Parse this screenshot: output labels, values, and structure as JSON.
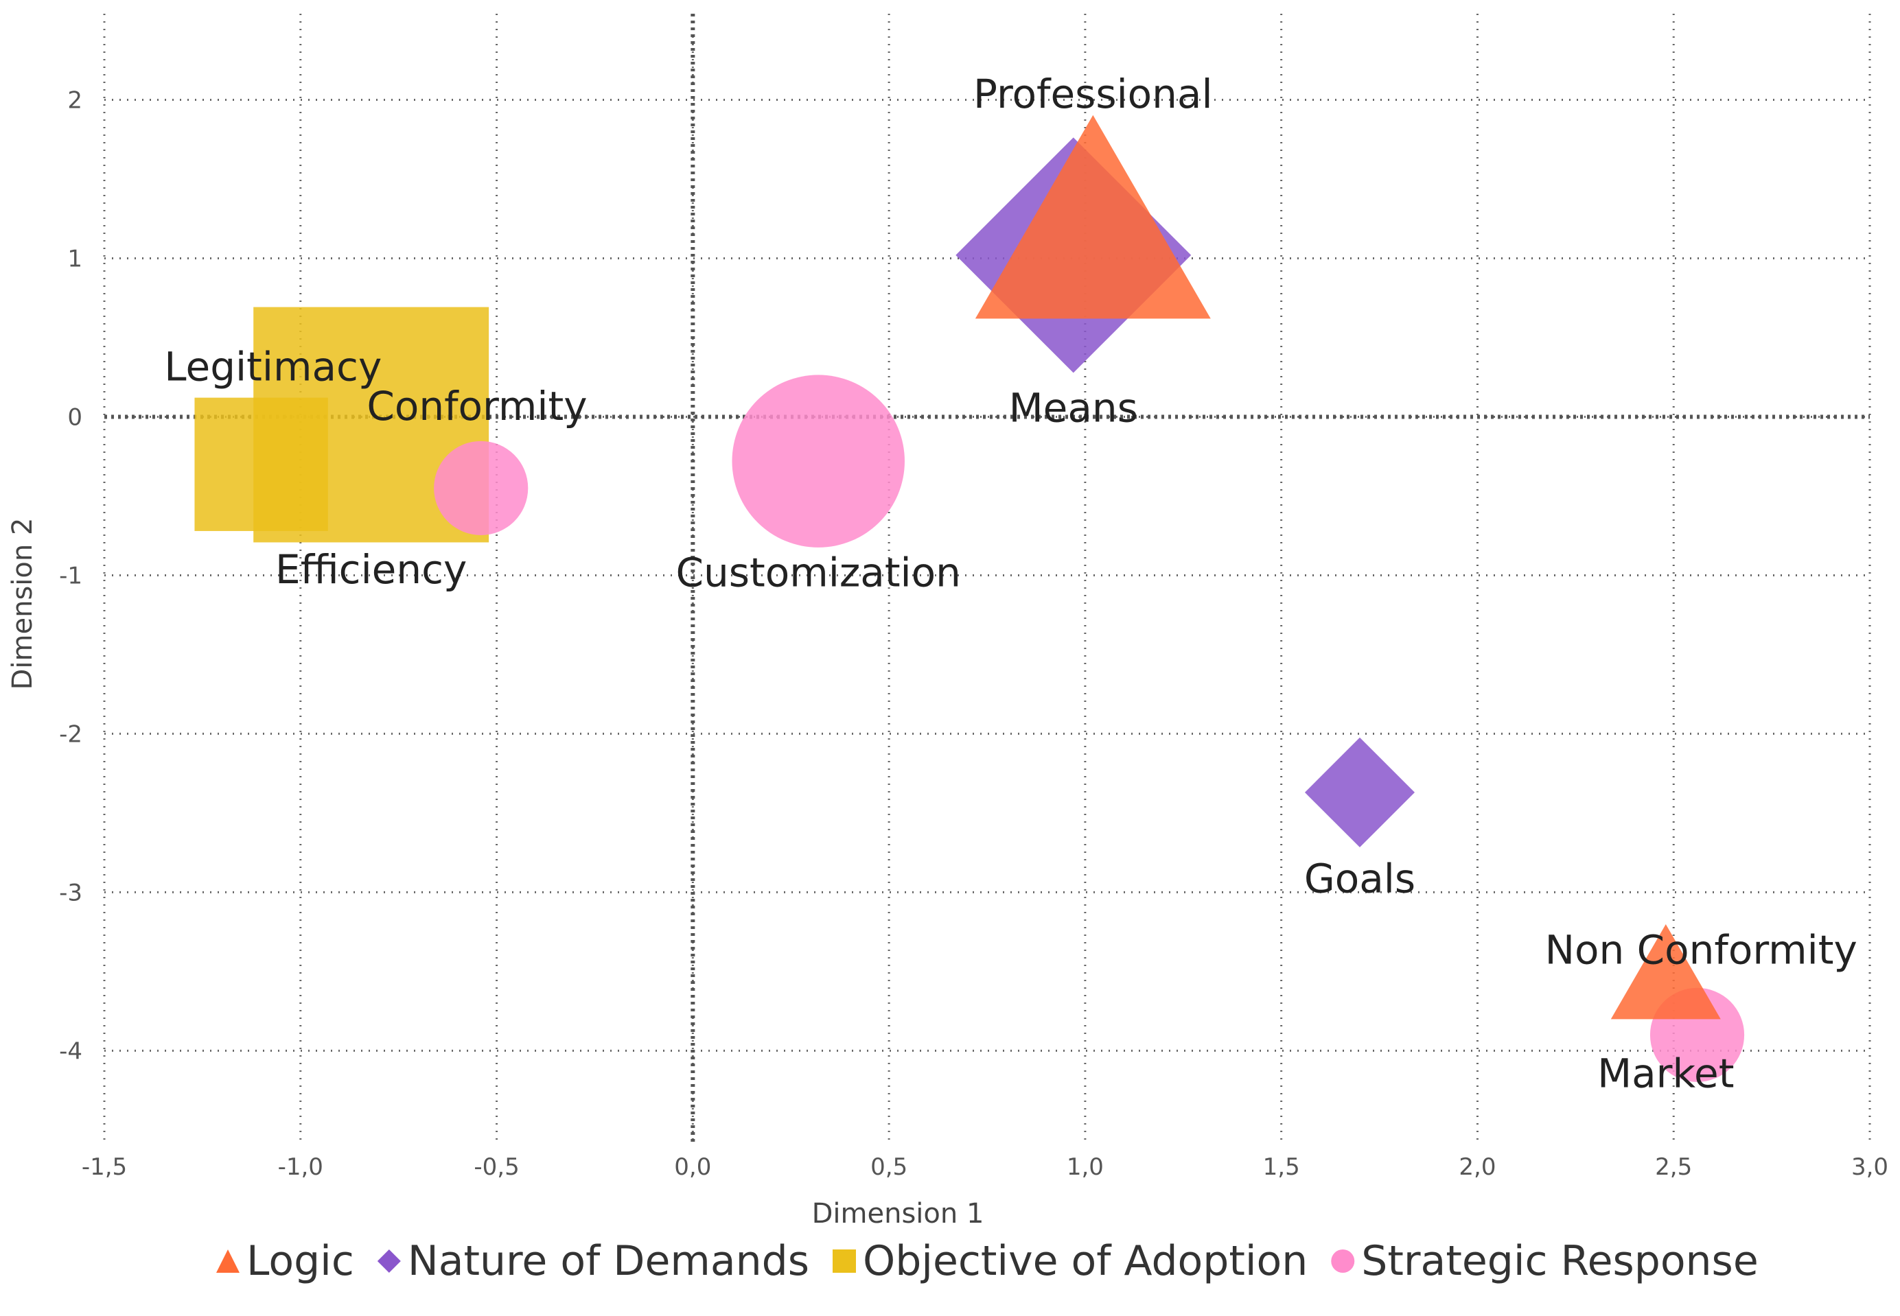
{
  "chart_data": {
    "type": "scatter",
    "xlabel": "Dimension 1",
    "ylabel": "Dimension 2",
    "xlim": [
      -1.5,
      3.0
    ],
    "ylim": [
      -4.6,
      2.5
    ],
    "xticks": [
      -1.5,
      -1.0,
      -0.5,
      0.0,
      0.5,
      1.0,
      1.5,
      2.0,
      2.5,
      3.0
    ],
    "xtick_labels": [
      "-1,5",
      "-1,0",
      "-0,5",
      "0,0",
      "0,5",
      "1,0",
      "1,5",
      "2,0",
      "2,5",
      "3,0"
    ],
    "yticks": [
      2,
      1,
      0,
      -1,
      -2,
      -3,
      -4
    ],
    "ytick_labels": [
      "2",
      "1",
      "0",
      "-1",
      "-2",
      "-3",
      "-4"
    ],
    "grid": "dotted",
    "legend_placement": "bottom",
    "series": [
      {
        "name": "Logic",
        "marker": "triangle",
        "color": "#ff6b35",
        "points": [
          {
            "label": "Professional",
            "x": 1.02,
            "y": 1.05,
            "size": 0.3
          },
          {
            "label": "Non Conformity",
            "x": 2.48,
            "y": -3.6,
            "size": 0.14
          }
        ]
      },
      {
        "name": "Nature of Demands",
        "marker": "diamond",
        "color": "#8a56cc",
        "points": [
          {
            "label": "Means",
            "x": 0.97,
            "y": 1.02,
            "size": 0.3
          },
          {
            "label": "Goals",
            "x": 1.7,
            "y": -2.37,
            "size": 0.14
          }
        ]
      },
      {
        "name": "Objective of Adoption",
        "marker": "square",
        "color": "#ebc01b",
        "points": [
          {
            "label": "Efficiency",
            "x": -0.82,
            "y": -0.05,
            "size": 0.3
          },
          {
            "label": "Legitimacy",
            "x": -1.1,
            "y": -0.3,
            "size": 0.17
          }
        ]
      },
      {
        "name": "Strategic Response",
        "marker": "circle",
        "color": "#ff8ccc",
        "points": [
          {
            "label": "Conformity",
            "x": -0.54,
            "y": -0.45,
            "size": 0.12
          },
          {
            "label": "Customization",
            "x": 0.32,
            "y": -0.28,
            "size": 0.22
          },
          {
            "label": "Market",
            "x": 2.56,
            "y": -3.9,
            "size": 0.12
          }
        ]
      }
    ],
    "annotations": [
      {
        "text": "Professional",
        "x": 1.02,
        "y": 1.95
      },
      {
        "text": "Means",
        "x": 0.97,
        "y": -0.03
      },
      {
        "text": "Legitimacy",
        "x": -1.07,
        "y": 0.23
      },
      {
        "text": "Conformity",
        "x": -0.55,
        "y": -0.02
      },
      {
        "text": "Efficiency",
        "x": -0.82,
        "y": -1.05
      },
      {
        "text": "Customization",
        "x": 0.32,
        "y": -1.07
      },
      {
        "text": "Goals",
        "x": 1.7,
        "y": -3.0
      },
      {
        "text": "Non Conformity",
        "x": 2.57,
        "y": -3.45
      },
      {
        "text": "Market",
        "x": 2.48,
        "y": -4.23
      }
    ]
  }
}
